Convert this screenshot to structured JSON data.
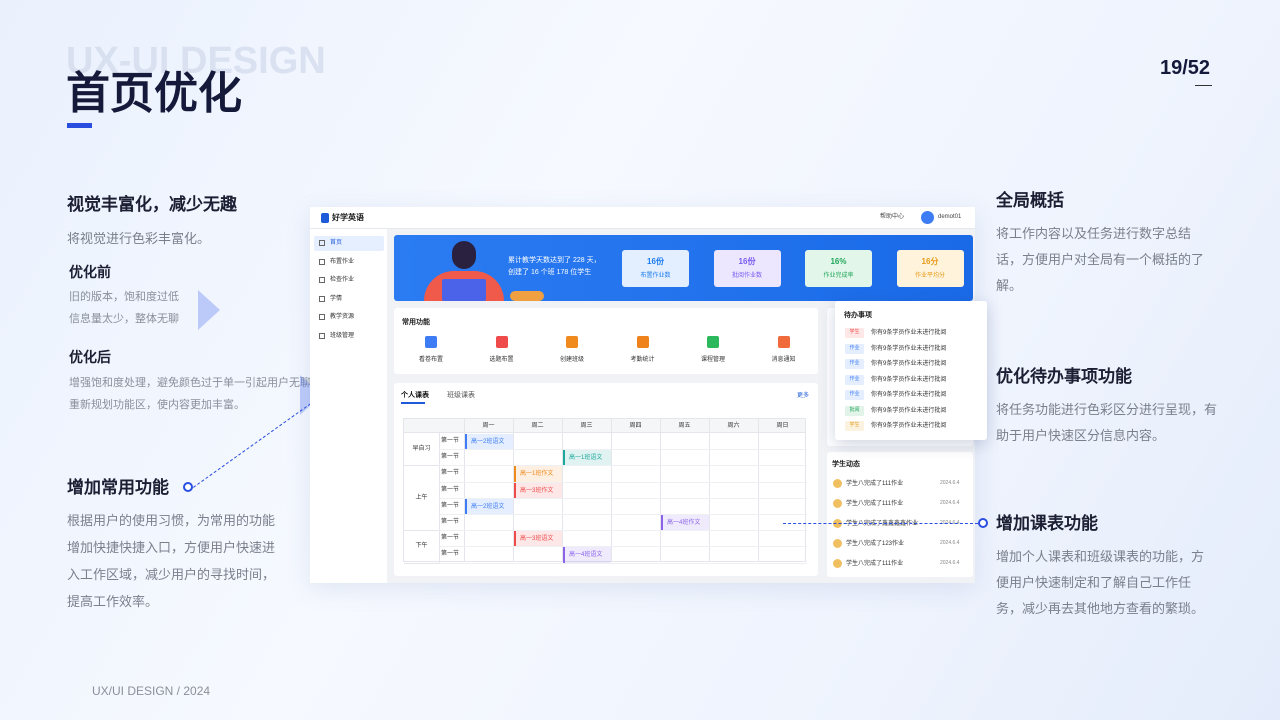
{
  "header": {
    "watermark": "UX-UI DESIGN",
    "title": "首页优化",
    "page": "19/52"
  },
  "left": {
    "visual": {
      "title": "视觉丰富化，减少无趣",
      "desc": "将视觉进行色彩丰富化。"
    },
    "before": {
      "title": "优化前",
      "lines": [
        "旧的版本，饱和度过低",
        "信息量太少，整体无聊"
      ]
    },
    "after": {
      "title": "优化后",
      "lines": [
        "增强饱和度处理，避免颜色过于单一引起用户无聊",
        "重新规划功能区，使内容更加丰富。"
      ]
    },
    "common": {
      "title": "增加常用功能",
      "lines": [
        "根据用户的使用习惯，为常用的功能",
        "增加快捷快捷入口，方便用户快速进",
        "入工作区域，减少用户的寻找时间，",
        "提高工作效率。"
      ]
    }
  },
  "right": {
    "overview": {
      "title": "全局概括",
      "lines": [
        "将工作内容以及任务进行数字总结",
        "话，方便用户对全局有一个概括的了",
        "解。"
      ]
    },
    "todo": {
      "title": "优化待办事项功能",
      "lines": [
        "将任务功能进行色彩区分进行呈现，有",
        "助于用户快速区分信息内容。"
      ]
    },
    "schedule": {
      "title": "增加课表功能",
      "lines": [
        "增加个人课表和班级课表的功能，方",
        "便用户快速制定和了解自己工作任",
        "务，减少再去其他地方查看的繁琐。"
      ]
    }
  },
  "footer": "UX/UI DESIGN / 2024",
  "app": {
    "name": "好学英语",
    "help": "帮助中心",
    "user": "demot01",
    "menu": [
      "首页",
      "布置作业",
      "检查作业",
      "学情",
      "教学资源",
      "班级管理"
    ],
    "banner": [
      "累计教学天数达到了 228 天，",
      "创建了 16 个班 178 位学生"
    ],
    "stats": [
      {
        "value": "16份",
        "label": "布置作业数",
        "color": "#1e7cf0",
        "bg": "#e3efff"
      },
      {
        "value": "16份",
        "label": "批阅作业数",
        "color": "#7a5af0",
        "bg": "#ece6ff"
      },
      {
        "value": "16%",
        "label": "作业完成率",
        "color": "#22a55a",
        "bg": "#e2f7ea"
      },
      {
        "value": "16分",
        "label": "作业平均分",
        "color": "#e69a17",
        "bg": "#fff3dc"
      }
    ],
    "shortcuts": {
      "title": "常用功能",
      "items": [
        {
          "label": "看卷布置",
          "color": "#3d7cf5"
        },
        {
          "label": "选题布置",
          "color": "#f04b4b"
        },
        {
          "label": "创建班级",
          "color": "#f08a1c"
        },
        {
          "label": "考勤统计",
          "color": "#f0821c"
        },
        {
          "label": "课程管理",
          "color": "#2cb85c"
        },
        {
          "label": "消息通知",
          "color": "#f06a3c"
        }
      ]
    },
    "schedule": {
      "tabs": [
        "个人课表",
        "班级课表"
      ],
      "more": "更多",
      "days": [
        "周一",
        "周二",
        "周三",
        "周四",
        "周五",
        "周六",
        "周日"
      ],
      "groups": [
        {
          "name": "早自习",
          "rows": [
            {
              "period": "第一节",
              "cells": [
                {
                  "text": "高一2班语文",
                  "color": "#3d7cf5"
                },
                null,
                null,
                null,
                null,
                null,
                null
              ]
            },
            {
              "period": "第一节",
              "cells": [
                null,
                null,
                {
                  "text": "高一1班语文",
                  "color": "#1aa89a"
                },
                null,
                null,
                null,
                null
              ]
            }
          ]
        },
        {
          "name": "上午",
          "rows": [
            {
              "period": "第一节",
              "cells": [
                null,
                {
                  "text": "高一1班作文",
                  "color": "#f08a1c"
                },
                null,
                null,
                null,
                null,
                null
              ]
            },
            {
              "period": "第一节",
              "cells": [
                null,
                {
                  "text": "高一3班作文",
                  "color": "#f04b4b"
                },
                null,
                null,
                null,
                null,
                null
              ]
            },
            {
              "period": "第一节",
              "cells": [
                {
                  "text": "高一2班语文",
                  "color": "#3d7cf5"
                },
                null,
                null,
                null,
                null,
                null,
                null
              ]
            },
            {
              "period": "第一节",
              "cells": [
                null,
                null,
                null,
                null,
                {
                  "text": "高一4班作文",
                  "color": "#8a63e8"
                },
                null,
                null
              ]
            }
          ]
        },
        {
          "name": "下午",
          "rows": [
            {
              "period": "第一节",
              "cells": [
                null,
                {
                  "text": "高一3班语文",
                  "color": "#f04b4b"
                },
                null,
                null,
                null,
                null,
                null
              ]
            },
            {
              "period": "第一节",
              "cells": [
                null,
                null,
                {
                  "text": "高一4班语文",
                  "color": "#8a63e8"
                },
                null,
                null,
                null,
                null
              ]
            }
          ]
        }
      ]
    },
    "todo": {
      "title": "待办事项",
      "items": [
        {
          "tag": "学生",
          "color": "#f04b4b",
          "text": "你有9条学员作业未进行批阅"
        },
        {
          "tag": "作业",
          "color": "#3d7cf5",
          "text": "你有9条学员作业未进行批阅"
        },
        {
          "tag": "作业",
          "color": "#3d7cf5",
          "text": "你有9条学员作业未进行批阅"
        },
        {
          "tag": "作业",
          "color": "#3d7cf5",
          "text": "你有9条学员作业未进行批阅"
        },
        {
          "tag": "作业",
          "color": "#3d7cf5",
          "text": "你有9条学员作业未进行批阅"
        },
        {
          "tag": "批阅",
          "color": "#22a55a",
          "text": "你有9条学员作业未进行批阅"
        },
        {
          "tag": "学生",
          "color": "#e69a17",
          "text": "你有9条学员作业未进行批阅"
        }
      ]
    },
    "activity": {
      "title": "学生动态",
      "items": [
        {
          "text": "学生八完成了111作业",
          "date": "2024.6.4"
        },
        {
          "text": "学生八完成了111作业",
          "date": "2024.6.4"
        },
        {
          "text": "学生八完成了鑫鑫鑫鑫作业",
          "date": "2024.6.4"
        },
        {
          "text": "学生八完成了123作业",
          "date": "2024.6.4"
        },
        {
          "text": "学生八完成了111作业",
          "date": "2024.6.4"
        }
      ]
    }
  }
}
